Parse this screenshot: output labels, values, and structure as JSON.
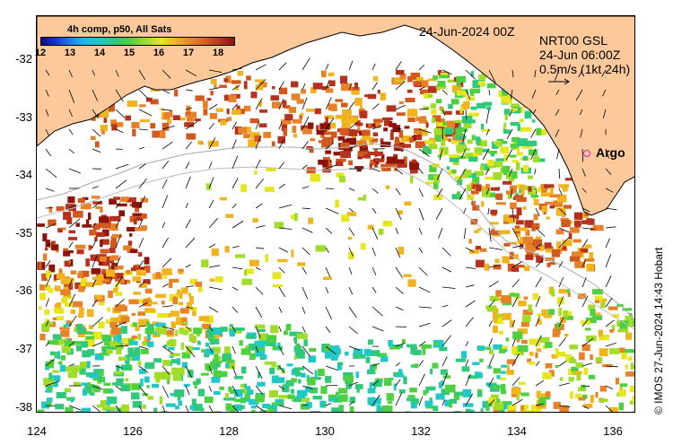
{
  "map": {
    "title_date": "24-Jun-2024 00Z",
    "colorbar": {
      "title": "4h comp, p50, All Sats",
      "ticks": [
        "12",
        "13",
        "14",
        "15",
        "16",
        "17",
        "18"
      ],
      "min": 12,
      "max": 18.5
    },
    "current_source": "NRT00 GSL",
    "current_time": "24-Jun 06:00Z",
    "scale_label": "0.5m/s (1kt 24h)",
    "argo_label": "Argo",
    "copyright": "© IMOS 27-Jun-2024 14:43 Hobart",
    "latitude_labels": [
      "-32",
      "-33",
      "-34",
      "-35",
      "-36",
      "-37",
      "-38"
    ],
    "longitude_labels": [
      "124",
      "126",
      "128",
      "130",
      "132",
      "134",
      "136"
    ],
    "lat_range": [
      -38.1,
      -31.3
    ],
    "lon_range": [
      124,
      136.5
    ],
    "colors": {
      "land": "#fdc99a",
      "ocean_gap": "#ffffff",
      "argo": "#e020c0"
    }
  }
}
